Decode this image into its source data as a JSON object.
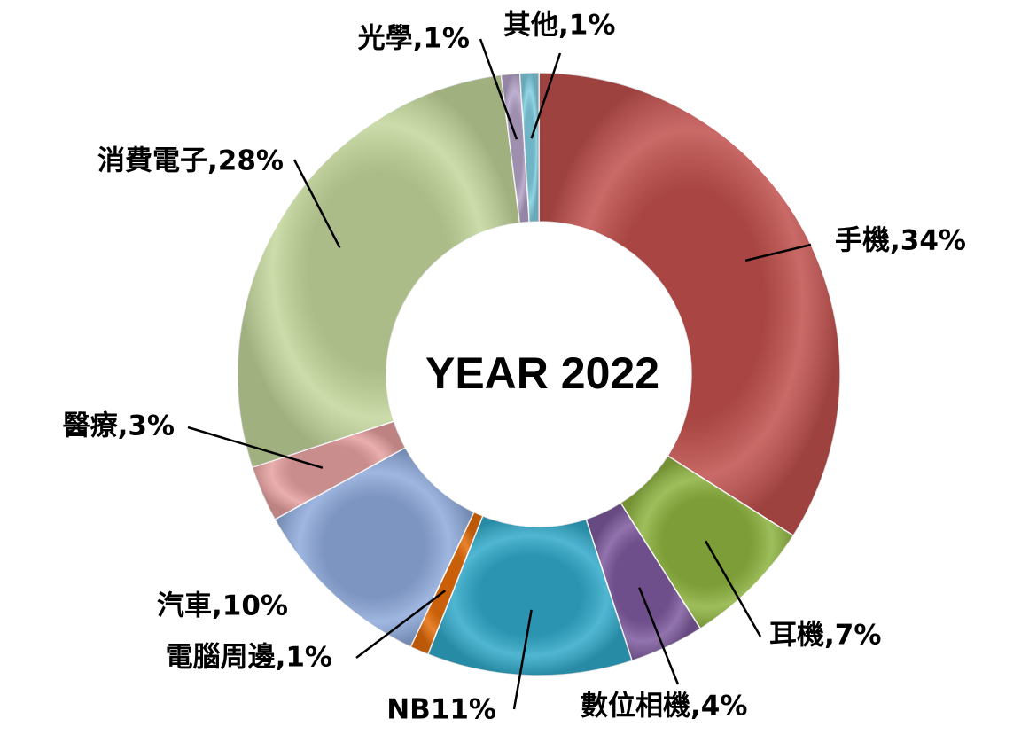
{
  "chart_data": {
    "type": "donut",
    "title": "YEAR 2022",
    "values": [
      34,
      7,
      4,
      11,
      1,
      10,
      3,
      28,
      1,
      1
    ],
    "value_labels": [
      "手機,34%",
      "耳機,7%",
      "數位相機,4%",
      "NB11%",
      "電腦周邊,1%",
      "汽車,10%",
      "醫療,3%",
      "消費電子,28%",
      "光學,1%",
      "其他,1%"
    ],
    "colors": [
      "#c0504d",
      "#8db23f",
      "#7e5a9e",
      "#31a9c9",
      "#e46c0a",
      "#8eaadb",
      "#e6a0a0",
      "#c3d69b",
      "#b3a2c7",
      "#7fcde0"
    ]
  }
}
